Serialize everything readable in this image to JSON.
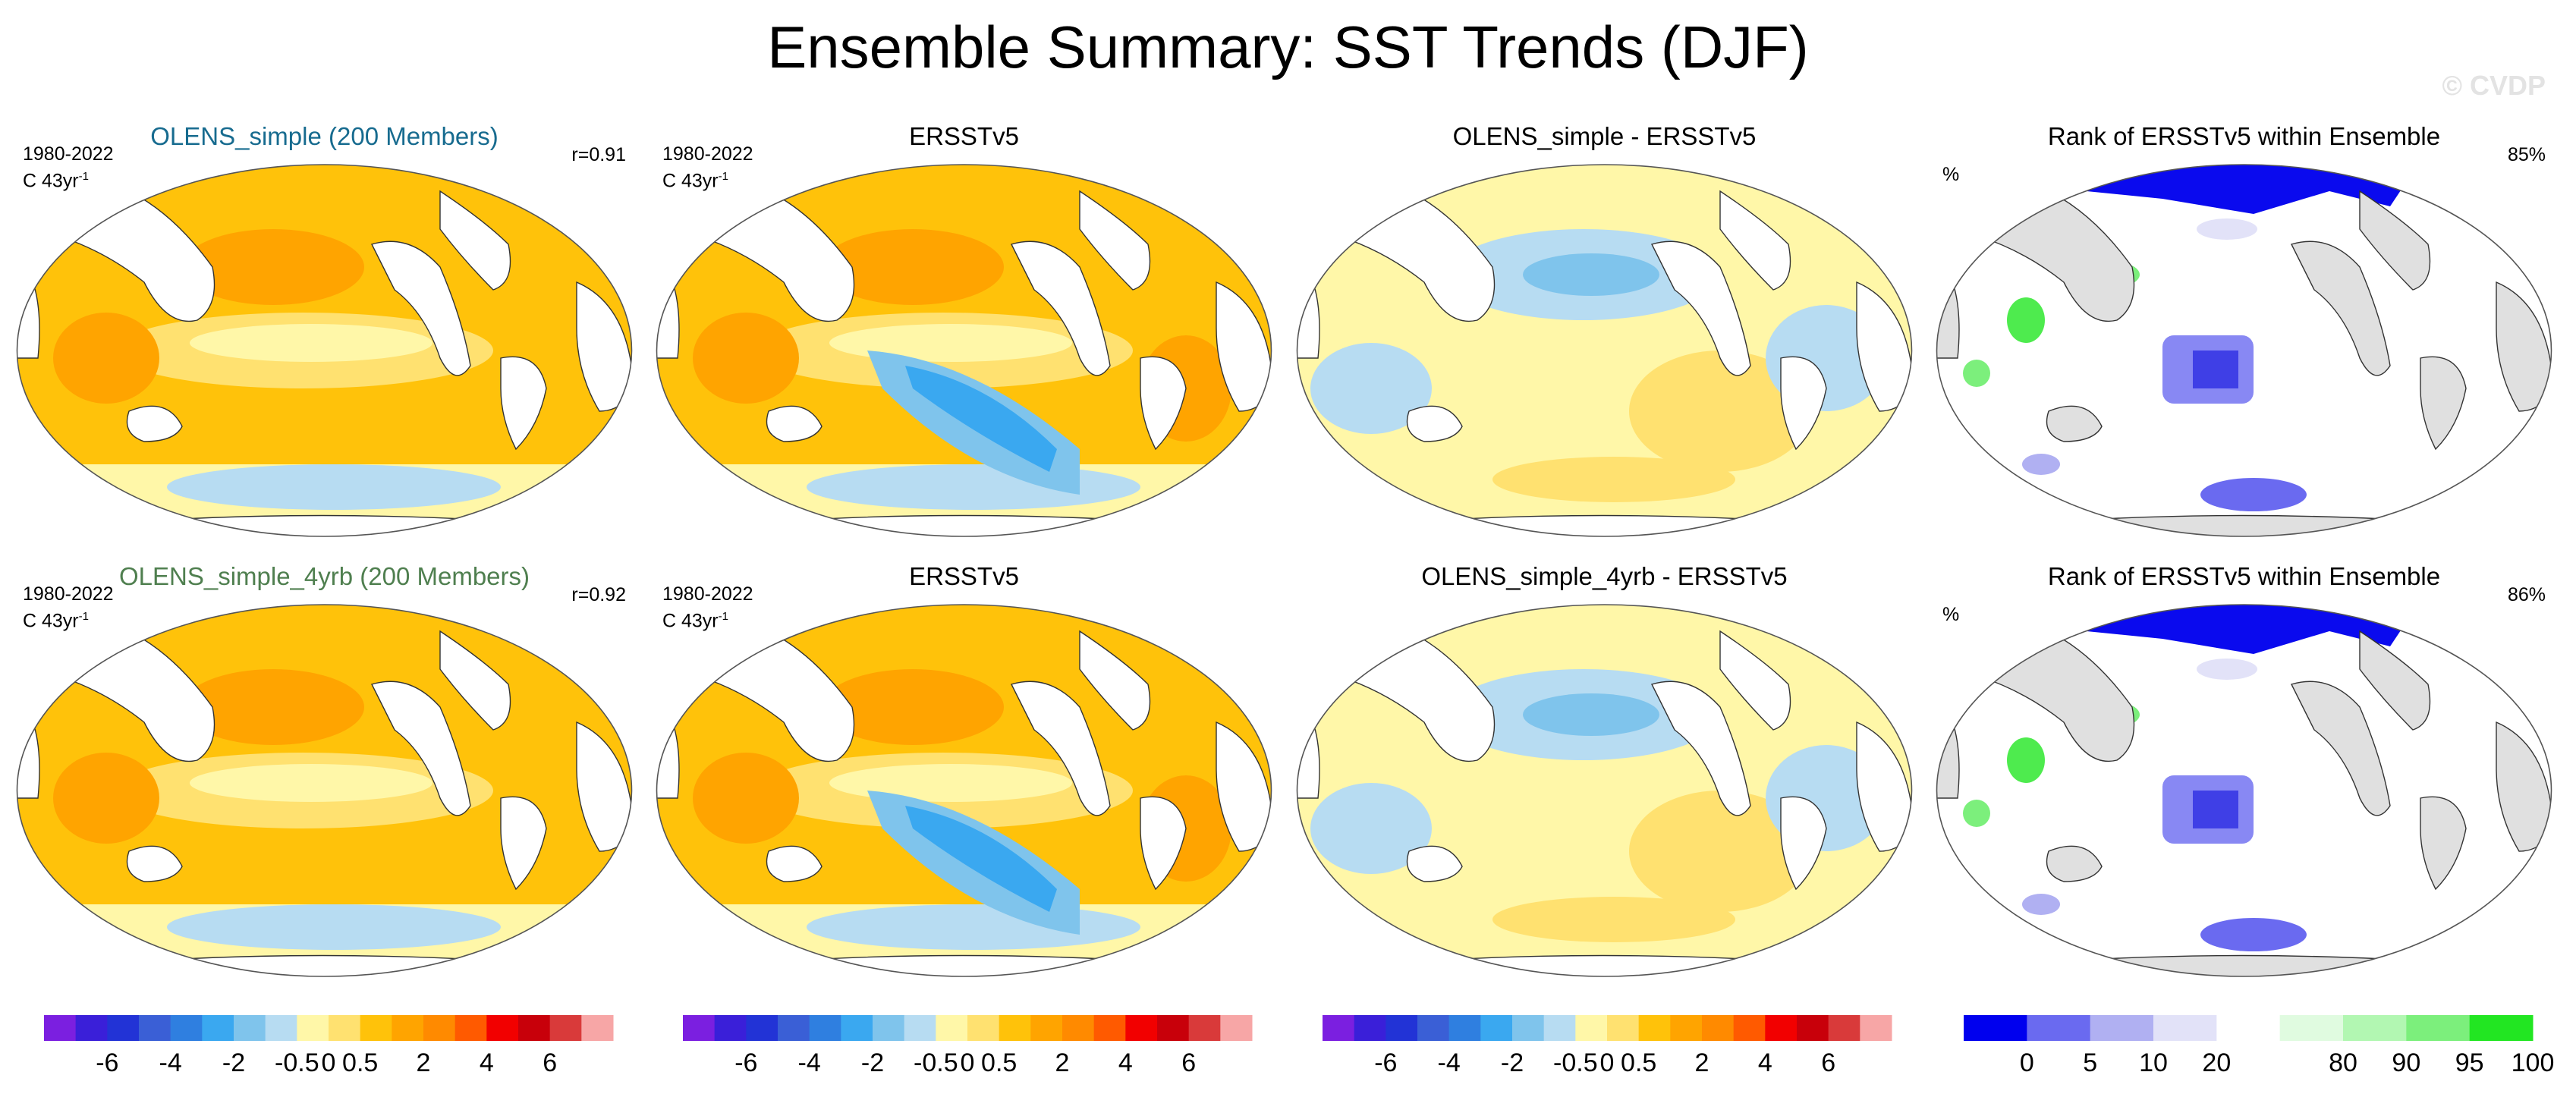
{
  "figure": {
    "title": "Ensemble Summary: SST Trends (DJF)",
    "watermark": "© CVDP"
  },
  "rows": [
    {
      "panels": [
        {
          "title": "OLENS_simple (200 Members)",
          "period": "1980-2022",
          "units": "C 43yr",
          "units_exp": "-1",
          "corr": "r=0.91",
          "kind": "model"
        },
        {
          "title": "ERSSTv5",
          "period": "1980-2022",
          "units": "C 43yr",
          "units_exp": "-1",
          "kind": "obs"
        },
        {
          "title": "OLENS_simple - ERSSTv5",
          "kind": "diff"
        },
        {
          "title": "Rank of ERSSTv5 within Ensemble",
          "pct_symbol": "%",
          "pct_value": "85%",
          "kind": "rank"
        }
      ]
    },
    {
      "panels": [
        {
          "title": "OLENS_simple_4yrb (200 Members)",
          "period": "1980-2022",
          "units": "C 43yr",
          "units_exp": "-1",
          "corr": "r=0.92",
          "kind": "model"
        },
        {
          "title": "ERSSTv5",
          "period": "1980-2022",
          "units": "C 43yr",
          "units_exp": "-1",
          "kind": "obs"
        },
        {
          "title": "OLENS_simple_4yrb - ERSSTv5",
          "kind": "diff"
        },
        {
          "title": "Rank of ERSSTv5 within Ensemble",
          "pct_symbol": "%",
          "pct_value": "86%",
          "kind": "rank"
        }
      ]
    }
  ],
  "colorbars": {
    "trend": {
      "colors": [
        "#7b1fe0",
        "#3a1fd9",
        "#2233d6",
        "#3a5fd6",
        "#2f7fe0",
        "#3aa8f0",
        "#7fc4ec",
        "#b7dcf2",
        "#fff7a8",
        "#ffe170",
        "#ffc20a",
        "#ffa400",
        "#ff8a00",
        "#ff5a00",
        "#f20000",
        "#c8000a",
        "#d93a3a",
        "#f7a6a6"
      ],
      "tick_labels": [
        "-6",
        "-4",
        "-2",
        "-0.5",
        "0",
        "0.5",
        "2",
        "4",
        "6"
      ],
      "tick_boundaries": [
        2,
        4,
        6,
        8,
        9,
        10,
        12,
        14,
        16
      ]
    },
    "rank": {
      "colors": [
        "#0000ee",
        "#6a6af0",
        "#b0b0f2",
        "#e2e2f8",
        "#ffffff",
        "#e0fbe0",
        "#b2f7b2",
        "#7cef7c",
        "#22e622"
      ],
      "tick_labels": [
        "0",
        "5",
        "10",
        "20",
        "80",
        "90",
        "95",
        "100"
      ],
      "tick_boundaries": [
        1,
        2,
        3,
        4,
        6,
        7,
        8,
        9
      ]
    }
  },
  "chart_data": {
    "type": "heatmap",
    "title": "Ensemble Summary: SST Trends (DJF)",
    "variable": "SST trend",
    "season": "DJF",
    "period": "1980-2022",
    "units": "C 43yr-1",
    "trend_levels": [
      -6,
      -5,
      -4,
      -3,
      -2,
      -1,
      -0.5,
      -0.25,
      0,
      0.25,
      0.5,
      1,
      2,
      3,
      4,
      5,
      6
    ],
    "rank_levels": [
      0,
      5,
      10,
      20,
      80,
      90,
      95,
      100
    ],
    "pattern_correlations": {
      "OLENS_simple": 0.91,
      "OLENS_simple_4yrb": 0.92
    },
    "rank_within_range_percent": {
      "OLENS_simple": 85,
      "OLENS_simple_4yrb": 86
    }
  }
}
